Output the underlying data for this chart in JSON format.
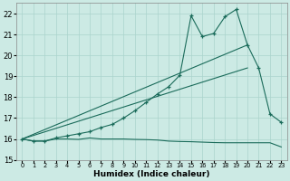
{
  "xlabel": "Humidex (Indice chaleur)",
  "xlim": [
    -0.5,
    23.5
  ],
  "ylim": [
    15,
    22.5
  ],
  "yticks": [
    15,
    16,
    17,
    18,
    19,
    20,
    21,
    22
  ],
  "xticks": [
    0,
    1,
    2,
    3,
    4,
    5,
    6,
    7,
    8,
    9,
    10,
    11,
    12,
    13,
    14,
    15,
    16,
    17,
    18,
    19,
    20,
    21,
    22,
    23
  ],
  "bg_color": "#cceae4",
  "line_color": "#1a6b5a",
  "grid_color": "#aad4cc",
  "line1_x": [
    0,
    1,
    2,
    3,
    4,
    5,
    6,
    7,
    8,
    9,
    10,
    11,
    12,
    13,
    14,
    15,
    16,
    17,
    18,
    19,
    20,
    21,
    22,
    23
  ],
  "line1_y": [
    16.0,
    15.9,
    15.9,
    16.05,
    16.15,
    16.25,
    16.35,
    16.55,
    16.7,
    17.0,
    17.35,
    17.75,
    18.15,
    18.5,
    19.05,
    21.9,
    20.9,
    21.05,
    21.85,
    22.2,
    20.5,
    19.4,
    17.2,
    16.8
  ],
  "line1_marker_x": [
    0,
    1,
    2,
    3,
    4,
    5,
    6,
    7,
    8,
    9,
    10,
    11,
    12,
    13,
    14,
    15,
    16,
    17,
    18,
    19,
    20,
    21,
    22,
    23
  ],
  "line1_marker_y": [
    16.0,
    15.9,
    15.9,
    16.05,
    16.15,
    16.25,
    16.35,
    16.55,
    16.7,
    17.0,
    17.35,
    17.75,
    18.15,
    18.5,
    19.05,
    21.9,
    20.9,
    21.05,
    21.85,
    22.2,
    20.5,
    19.4,
    17.2,
    16.8
  ],
  "line2_x": [
    0,
    20
  ],
  "line2_y": [
    16.0,
    20.5
  ],
  "line3_x": [
    0,
    20
  ],
  "line3_y": [
    16.0,
    19.4
  ],
  "line4_x": [
    0,
    1,
    2,
    3,
    4,
    5,
    6,
    7,
    8,
    9,
    10,
    11,
    12,
    13,
    14,
    15,
    16,
    17,
    18,
    19,
    20,
    21,
    22,
    23
  ],
  "line4_y": [
    16.0,
    15.9,
    15.9,
    16.0,
    16.0,
    15.98,
    16.05,
    16.0,
    16.0,
    16.0,
    15.98,
    15.97,
    15.95,
    15.9,
    15.88,
    15.87,
    15.85,
    15.83,
    15.82,
    15.82,
    15.82,
    15.82,
    15.82,
    15.62
  ]
}
